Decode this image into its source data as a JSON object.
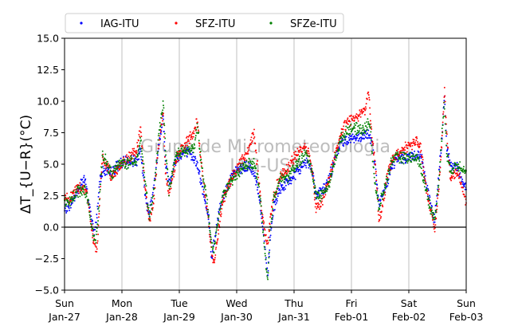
{
  "chart_data": {
    "type": "scatter",
    "ylabel": "ΔT_{U−R}(°C)",
    "ylim": [
      -5,
      15
    ],
    "yticks": [
      -5.0,
      -2.5,
      0.0,
      2.5,
      5.0,
      7.5,
      10.0,
      12.5,
      15.0
    ],
    "ytick_labels": [
      "−5.0",
      "−2.5",
      "0.0",
      "2.5",
      "5.0",
      "7.5",
      "10.0",
      "12.5",
      "15.0"
    ],
    "xlim_days": [
      0,
      7
    ],
    "x_tick_labels": [
      {
        "day": "Sun",
        "date": "Jan-27"
      },
      {
        "day": "Mon",
        "date": "Jan-28"
      },
      {
        "day": "Tue",
        "date": "Jan-29"
      },
      {
        "day": "Wed",
        "date": "Jan-30"
      },
      {
        "day": "Thu",
        "date": "Jan-31"
      },
      {
        "day": "Fri",
        "date": "Feb-01"
      },
      {
        "day": "Sat",
        "date": "Feb-02"
      },
      {
        "day": "Sun",
        "date": "Feb-03"
      }
    ],
    "grid": "vertical",
    "zero_line": true,
    "legend_position": "top",
    "watermark": [
      "Grupo de Micrometeorologia",
      "IAG-USP"
    ],
    "series": [
      {
        "name": "IAG-ITU",
        "color": "#0000ff",
        "keypoints": [
          [
            0.0,
            1.3
          ],
          [
            0.08,
            1.7
          ],
          [
            0.2,
            2.6
          ],
          [
            0.3,
            3.6
          ],
          [
            0.35,
            3.8
          ],
          [
            0.42,
            2.0
          ],
          [
            0.48,
            0.5
          ],
          [
            0.52,
            -0.6
          ],
          [
            0.56,
            0.8
          ],
          [
            0.62,
            4.0
          ],
          [
            0.68,
            4.5
          ],
          [
            0.8,
            4.3
          ],
          [
            0.95,
            5.0
          ],
          [
            1.1,
            5.2
          ],
          [
            1.25,
            5.3
          ],
          [
            1.32,
            6.0
          ],
          [
            1.36,
            4.5
          ],
          [
            1.42,
            2.0
          ],
          [
            1.48,
            1.2
          ],
          [
            1.55,
            3.0
          ],
          [
            1.65,
            6.8
          ],
          [
            1.72,
            8.8
          ],
          [
            1.76,
            5.0
          ],
          [
            1.82,
            3.5
          ],
          [
            1.95,
            5.5
          ],
          [
            2.1,
            6.0
          ],
          [
            2.25,
            5.6
          ],
          [
            2.3,
            5.2
          ],
          [
            2.38,
            3.5
          ],
          [
            2.46,
            2.0
          ],
          [
            2.52,
            0.5
          ],
          [
            2.56,
            -2.5
          ],
          [
            2.62,
            -1.0
          ],
          [
            2.7,
            1.5
          ],
          [
            2.85,
            3.5
          ],
          [
            3.0,
            4.5
          ],
          [
            3.15,
            4.8
          ],
          [
            3.28,
            4.6
          ],
          [
            3.35,
            3.5
          ],
          [
            3.42,
            1.5
          ],
          [
            3.46,
            0.0
          ],
          [
            3.5,
            -2.0
          ],
          [
            3.54,
            -4.0
          ],
          [
            3.58,
            -1.0
          ],
          [
            3.65,
            1.5
          ],
          [
            3.75,
            3.0
          ],
          [
            3.9,
            3.6
          ],
          [
            4.05,
            4.3
          ],
          [
            4.2,
            5.2
          ],
          [
            4.28,
            5.0
          ],
          [
            4.33,
            4.2
          ],
          [
            4.38,
            2.5
          ],
          [
            4.46,
            2.8
          ],
          [
            4.56,
            3.2
          ],
          [
            4.62,
            4.0
          ],
          [
            4.72,
            5.5
          ],
          [
            4.82,
            6.8
          ],
          [
            5.0,
            7.1
          ],
          [
            5.15,
            7.0
          ],
          [
            5.28,
            7.4
          ],
          [
            5.36,
            7.0
          ],
          [
            5.42,
            4.5
          ],
          [
            5.48,
            1.8
          ],
          [
            5.55,
            2.5
          ],
          [
            5.62,
            3.5
          ],
          [
            5.68,
            4.5
          ],
          [
            5.78,
            5.4
          ],
          [
            6.0,
            5.6
          ],
          [
            6.18,
            5.8
          ],
          [
            6.25,
            5.0
          ],
          [
            6.32,
            3.0
          ],
          [
            6.38,
            1.8
          ],
          [
            6.45,
            0.5
          ],
          [
            6.52,
            4.0
          ],
          [
            6.58,
            7.0
          ],
          [
            6.62,
            10.5
          ],
          [
            6.66,
            6.5
          ],
          [
            6.72,
            4.8
          ],
          [
            6.85,
            4.8
          ],
          [
            7.0,
            3.0
          ]
        ]
      },
      {
        "name": "SFZ-ITU",
        "color": "#ff0000",
        "keypoints": [
          [
            0.0,
            2.4
          ],
          [
            0.08,
            2.2
          ],
          [
            0.2,
            3.0
          ],
          [
            0.3,
            3.2
          ],
          [
            0.38,
            3.0
          ],
          [
            0.44,
            1.0
          ],
          [
            0.5,
            -1.0
          ],
          [
            0.56,
            -2.0
          ],
          [
            0.6,
            1.0
          ],
          [
            0.66,
            5.5
          ],
          [
            0.72,
            5.0
          ],
          [
            0.82,
            4.0
          ],
          [
            0.95,
            4.8
          ],
          [
            1.1,
            5.4
          ],
          [
            1.25,
            6.0
          ],
          [
            1.33,
            7.8
          ],
          [
            1.37,
            5.0
          ],
          [
            1.42,
            2.5
          ],
          [
            1.48,
            0.3
          ],
          [
            1.55,
            2.0
          ],
          [
            1.65,
            7.0
          ],
          [
            1.72,
            9.0
          ],
          [
            1.76,
            4.5
          ],
          [
            1.82,
            2.5
          ],
          [
            1.95,
            5.5
          ],
          [
            2.1,
            6.5
          ],
          [
            2.25,
            7.5
          ],
          [
            2.32,
            8.5
          ],
          [
            2.36,
            6.0
          ],
          [
            2.42,
            3.5
          ],
          [
            2.5,
            1.0
          ],
          [
            2.55,
            -1.5
          ],
          [
            2.6,
            -3.0
          ],
          [
            2.66,
            -1.0
          ],
          [
            2.75,
            2.0
          ],
          [
            2.9,
            3.8
          ],
          [
            3.05,
            5.0
          ],
          [
            3.18,
            5.8
          ],
          [
            3.3,
            7.5
          ],
          [
            3.36,
            5.0
          ],
          [
            3.42,
            2.0
          ],
          [
            3.48,
            0.0
          ],
          [
            3.54,
            -1.5
          ],
          [
            3.58,
            0.5
          ],
          [
            3.65,
            2.5
          ],
          [
            3.75,
            4.0
          ],
          [
            3.9,
            4.8
          ],
          [
            4.05,
            5.8
          ],
          [
            4.2,
            6.5
          ],
          [
            4.28,
            5.5
          ],
          [
            4.33,
            4.0
          ],
          [
            4.38,
            1.5
          ],
          [
            4.46,
            1.8
          ],
          [
            4.56,
            3.0
          ],
          [
            4.62,
            4.0
          ],
          [
            4.72,
            5.8
          ],
          [
            4.82,
            7.5
          ],
          [
            4.95,
            8.5
          ],
          [
            5.1,
            8.8
          ],
          [
            5.25,
            9.5
          ],
          [
            5.3,
            10.8
          ],
          [
            5.36,
            7.0
          ],
          [
            5.42,
            5.0
          ],
          [
            5.48,
            0.5
          ],
          [
            5.54,
            1.5
          ],
          [
            5.62,
            4.0
          ],
          [
            5.72,
            5.5
          ],
          [
            5.85,
            6.0
          ],
          [
            6.0,
            6.5
          ],
          [
            6.15,
            6.8
          ],
          [
            6.22,
            6.0
          ],
          [
            6.3,
            3.0
          ],
          [
            6.38,
            1.5
          ],
          [
            6.45,
            -0.3
          ],
          [
            6.52,
            3.0
          ],
          [
            6.58,
            7.0
          ],
          [
            6.62,
            11.0
          ],
          [
            6.66,
            7.5
          ],
          [
            6.72,
            4.0
          ],
          [
            6.85,
            4.3
          ],
          [
            7.0,
            2.0
          ]
        ]
      },
      {
        "name": "SFZe-ITU",
        "color": "#008000",
        "keypoints": [
          [
            0.0,
            2.0
          ],
          [
            0.08,
            1.9
          ],
          [
            0.2,
            2.8
          ],
          [
            0.3,
            3.0
          ],
          [
            0.38,
            2.8
          ],
          [
            0.44,
            1.0
          ],
          [
            0.5,
            -0.5
          ],
          [
            0.55,
            -1.2
          ],
          [
            0.6,
            1.5
          ],
          [
            0.66,
            5.8
          ],
          [
            0.72,
            5.2
          ],
          [
            0.82,
            4.2
          ],
          [
            0.95,
            5.0
          ],
          [
            1.1,
            5.1
          ],
          [
            1.25,
            5.3
          ],
          [
            1.33,
            7.0
          ],
          [
            1.37,
            5.0
          ],
          [
            1.42,
            3.0
          ],
          [
            1.48,
            0.8
          ],
          [
            1.55,
            2.5
          ],
          [
            1.65,
            7.5
          ],
          [
            1.72,
            10.0
          ],
          [
            1.76,
            6.0
          ],
          [
            1.82,
            3.0
          ],
          [
            1.95,
            5.8
          ],
          [
            2.1,
            6.0
          ],
          [
            2.25,
            6.2
          ],
          [
            2.32,
            8.0
          ],
          [
            2.36,
            6.0
          ],
          [
            2.42,
            4.0
          ],
          [
            2.5,
            1.5
          ],
          [
            2.55,
            -1.0
          ],
          [
            2.6,
            -2.0
          ],
          [
            2.66,
            0.0
          ],
          [
            2.75,
            2.5
          ],
          [
            2.9,
            3.5
          ],
          [
            3.05,
            4.5
          ],
          [
            3.18,
            5.0
          ],
          [
            3.3,
            5.0
          ],
          [
            3.36,
            4.0
          ],
          [
            3.42,
            2.0
          ],
          [
            3.48,
            -1.5
          ],
          [
            3.54,
            -4.5
          ],
          [
            3.58,
            -0.5
          ],
          [
            3.65,
            2.5
          ],
          [
            3.75,
            3.8
          ],
          [
            3.9,
            4.0
          ],
          [
            4.05,
            5.0
          ],
          [
            4.2,
            5.8
          ],
          [
            4.28,
            5.2
          ],
          [
            4.33,
            4.0
          ],
          [
            4.38,
            2.5
          ],
          [
            4.46,
            2.5
          ],
          [
            4.56,
            3.0
          ],
          [
            4.62,
            3.5
          ],
          [
            4.72,
            5.5
          ],
          [
            4.82,
            7.0
          ],
          [
            4.95,
            7.8
          ],
          [
            5.1,
            7.8
          ],
          [
            5.25,
            7.8
          ],
          [
            5.32,
            8.5
          ],
          [
            5.36,
            6.0
          ],
          [
            5.42,
            3.0
          ],
          [
            5.48,
            1.5
          ],
          [
            5.54,
            2.5
          ],
          [
            5.62,
            3.8
          ],
          [
            5.72,
            5.5
          ],
          [
            5.85,
            5.5
          ],
          [
            6.0,
            5.5
          ],
          [
            6.15,
            5.5
          ],
          [
            6.22,
            4.5
          ],
          [
            6.3,
            3.0
          ],
          [
            6.38,
            1.5
          ],
          [
            6.45,
            0.5
          ],
          [
            6.52,
            3.5
          ],
          [
            6.58,
            7.5
          ],
          [
            6.62,
            9.8
          ],
          [
            6.66,
            6.0
          ],
          [
            6.72,
            4.5
          ],
          [
            6.85,
            5.0
          ],
          [
            7.0,
            4.5
          ]
        ]
      }
    ]
  }
}
